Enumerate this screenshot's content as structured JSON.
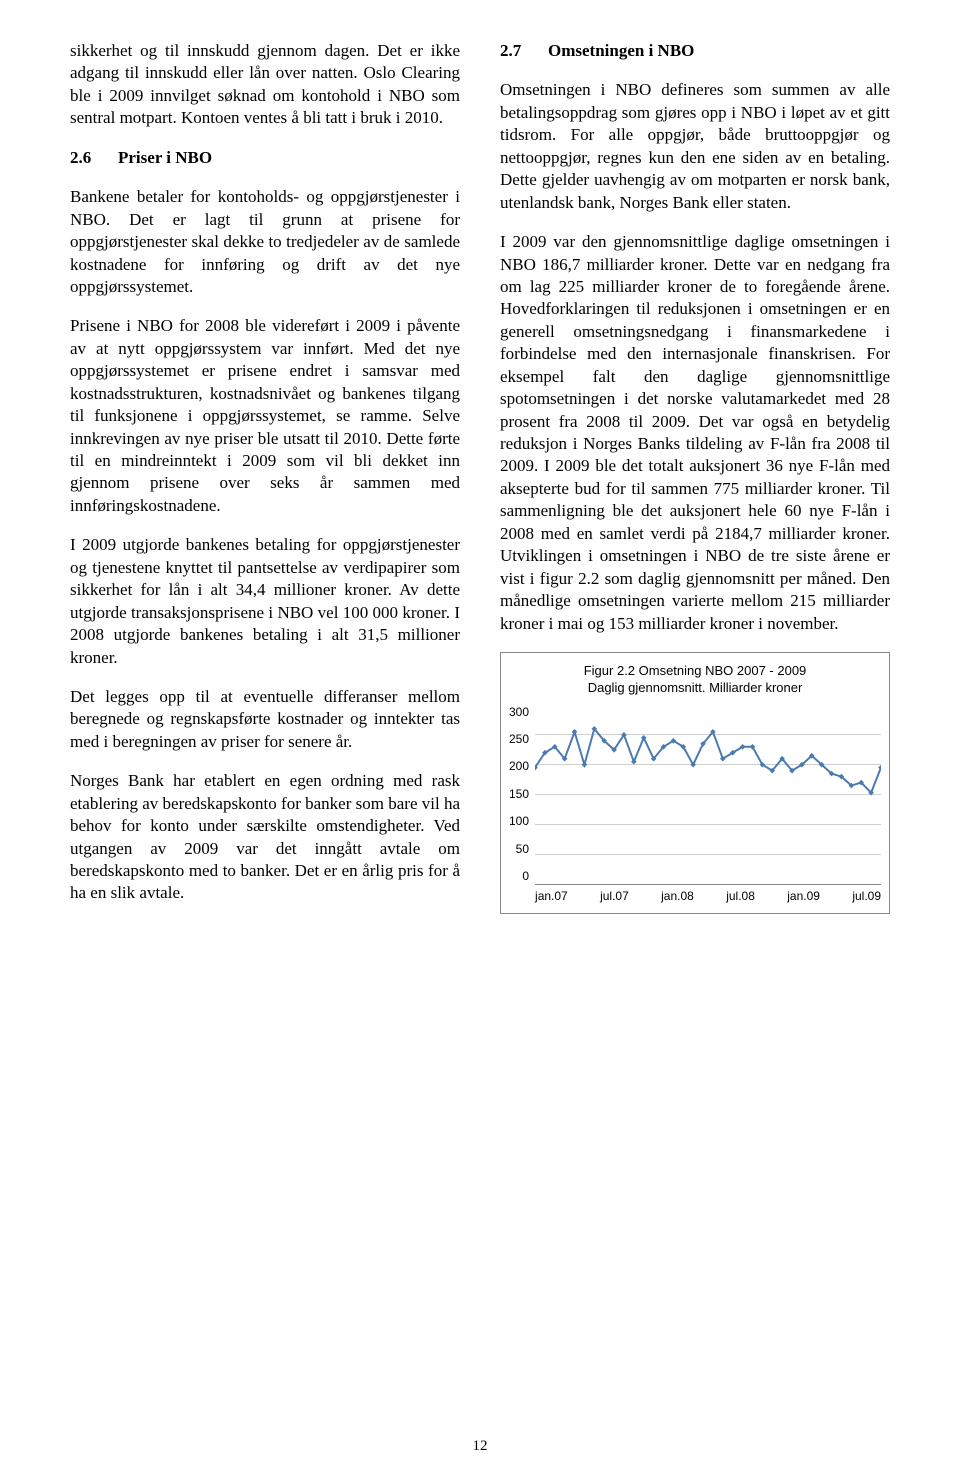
{
  "left": {
    "p1": "sikkerhet og til innskudd gjennom dagen. Det er ikke adgang til innskudd eller lån over natten. Oslo Clearing ble i 2009 innvilget søknad om kontohold i NBO som sentral motpart. Kontoen ventes å bli tatt i bruk i 2010.",
    "heading_num": "2.6",
    "heading_title": "Priser i NBO",
    "p2": "Bankene betaler for kontoholds- og oppgjørstjenester i NBO. Det er lagt til grunn at prisene for oppgjørstjenester skal dekke to tredjedeler av de samlede kostnadene for innføring og drift av det nye oppgjørssystemet.",
    "p3": "Prisene i NBO for 2008 ble videreført i 2009 i påvente av at nytt oppgjørssystem var innført. Med det nye oppgjørssystemet er prisene endret i samsvar med kostnadsstrukturen, kostnadsnivået og bankenes tilgang til funksjonene i oppgjørssystemet, se ramme. Selve innkrevingen av nye priser ble utsatt til 2010. Dette førte til en mindreinntekt i 2009 som vil bli dekket inn gjennom prisene over seks år sammen med innføringskostnadene.",
    "p4": "I 2009 utgjorde bankenes betaling for oppgjørstjenester og tjenestene knyttet til pantsettelse av verdipapirer som sikkerhet for lån i alt 34,4 millioner kroner. Av dette utgjorde transaksjonsprisene i NBO vel 100 000 kroner. I 2008 utgjorde bankenes betaling i alt 31,5 millioner kroner.",
    "p5": "Det legges opp til at eventuelle differanser mellom beregnede og regnskapsførte kostnader og inntekter tas med i beregningen av priser for senere år.",
    "p6": "Norges Bank har etablert en egen ordning med rask etablering av beredskapskonto for banker som bare vil ha behov for konto under særskilte omstendigheter. Ved utgangen av 2009 var det inngått avtale om beredskapskonto med to banker. Det er en årlig pris for å ha en slik avtale."
  },
  "right": {
    "heading_num": "2.7",
    "heading_title": "Omsetningen i NBO",
    "p1": "Omsetningen i NBO defineres som summen av alle betalingsoppdrag som gjøres opp i NBO i løpet av et gitt tidsrom. For alle oppgjør, både bruttooppgjør og nettooppgjør, regnes kun den ene siden av en betaling. Dette gjelder uavhengig av om motparten er norsk bank, utenlandsk bank, Norges Bank eller staten.",
    "p2": "I 2009 var den gjennomsnittlige daglige omsetningen i NBO 186,7 milliarder kroner. Dette var en nedgang fra om lag 225 milliarder kroner de to foregående årene. Hovedforklaringen til reduksjonen i omsetningen er en generell omsetningsnedgang i finansmarkedene i forbindelse med den internasjonale finanskrisen. For eksempel falt den daglige gjennomsnittlige spotomsetningen i det norske valutamarkedet med 28 prosent fra 2008 til 2009. Det var også en betydelig reduksjon i Norges Banks tildeling av F-lån fra 2008 til 2009. I 2009 ble det totalt auksjonert 36 nye F-lån med aksepterte bud for til sammen 775 milliarder kroner. Til sammenligning ble det auksjonert hele 60 nye F-lån i 2008 med en samlet verdi på 2184,7 milliarder kroner. Utviklingen i omsetningen i NBO de tre siste årene er vist i figur 2.2 som daglig gjennomsnitt per måned. Den månedlige omsetningen varierte mellom 215 milliarder kroner i mai og 153 milliarder kroner i november."
  },
  "chart": {
    "type": "line",
    "title_line1": "Figur 2.2 Omsetning NBO 2007 - 2009",
    "title_line2": "Daglig gjennomsnitt. Milliarder kroner",
    "ylim": [
      0,
      300
    ],
    "ytick_step": 50,
    "yticks": [
      "300",
      "250",
      "200",
      "150",
      "100",
      "50",
      "0"
    ],
    "xticks": [
      "jan.07",
      "jul.07",
      "jan.08",
      "jul.08",
      "jan.09",
      "jul.09"
    ],
    "line_color": "#4a7ab0",
    "marker_color": "#4a7ab0",
    "marker_size": 4,
    "line_width": 2,
    "background_color": "#ffffff",
    "grid_color": "#d0d0d0",
    "values": [
      195,
      220,
      230,
      210,
      255,
      200,
      260,
      240,
      225,
      250,
      205,
      245,
      210,
      230,
      240,
      230,
      200,
      235,
      255,
      210,
      220,
      230,
      230,
      200,
      190,
      210,
      190,
      200,
      215,
      200,
      185,
      180,
      165,
      170,
      153,
      195
    ]
  },
  "page_number": "12"
}
